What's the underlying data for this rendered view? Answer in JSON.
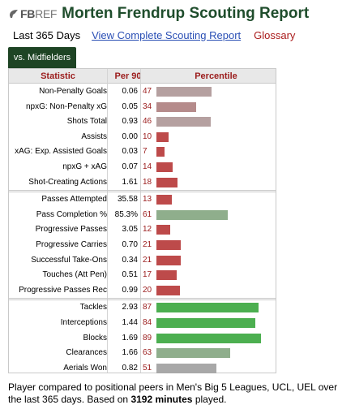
{
  "header": {
    "logo_fb": "FB",
    "logo_ref": "REF",
    "title": "Morten Frendrup Scouting Report"
  },
  "subnav": {
    "current": "Last 365 Days",
    "complete_link": "View Complete Scouting Report",
    "glossary": "Glossary"
  },
  "tab": {
    "label": "vs. Midfielders"
  },
  "table": {
    "headers": {
      "statistic": "Statistic",
      "per90": "Per 90",
      "percentile": "Percentile"
    },
    "groups": [
      [
        {
          "stat": "Non-Penalty Goals",
          "per90": "0.06",
          "pct": 47,
          "color": "#b5a0a0"
        },
        {
          "stat": "npxG: Non-Penalty xG",
          "per90": "0.05",
          "pct": 34,
          "color": "#b58b8b"
        },
        {
          "stat": "Shots Total",
          "per90": "0.93",
          "pct": 46,
          "color": "#b5a0a0"
        },
        {
          "stat": "Assists",
          "per90": "0.00",
          "pct": 10,
          "color": "#bd4a4a"
        },
        {
          "stat": "xAG: Exp. Assisted Goals",
          "per90": "0.03",
          "pct": 7,
          "color": "#bd4a4a"
        },
        {
          "stat": "npxG + xAG",
          "per90": "0.07",
          "pct": 14,
          "color": "#bd4a4a"
        },
        {
          "stat": "Shot-Creating Actions",
          "per90": "1.61",
          "pct": 18,
          "color": "#bd4a4a"
        }
      ],
      [
        {
          "stat": "Passes Attempted",
          "per90": "35.58",
          "pct": 13,
          "color": "#bd4a4a"
        },
        {
          "stat": "Pass Completion %",
          "per90": "85.3%",
          "pct": 61,
          "color": "#8fae8c"
        },
        {
          "stat": "Progressive Passes",
          "per90": "3.05",
          "pct": 12,
          "color": "#bd4a4a"
        },
        {
          "stat": "Progressive Carries",
          "per90": "0.70",
          "pct": 21,
          "color": "#bd4a4a"
        },
        {
          "stat": "Successful Take-Ons",
          "per90": "0.34",
          "pct": 21,
          "color": "#bd4a4a"
        },
        {
          "stat": "Touches (Att Pen)",
          "per90": "0.51",
          "pct": 17,
          "color": "#bd4a4a"
        },
        {
          "stat": "Progressive Passes Rec",
          "per90": "0.99",
          "pct": 20,
          "color": "#bd4a4a"
        }
      ],
      [
        {
          "stat": "Tackles",
          "per90": "2.93",
          "pct": 87,
          "color": "#4caf50"
        },
        {
          "stat": "Interceptions",
          "per90": "1.44",
          "pct": 84,
          "color": "#4caf50"
        },
        {
          "stat": "Blocks",
          "per90": "1.69",
          "pct": 89,
          "color": "#4caf50"
        },
        {
          "stat": "Clearances",
          "per90": "1.66",
          "pct": 63,
          "color": "#8fae8c"
        },
        {
          "stat": "Aerials Won",
          "per90": "0.82",
          "pct": 51,
          "color": "#a8a8a8"
        }
      ]
    ]
  },
  "footer": {
    "text_before": "Player compared to positional peers in Men's Big 5 Leagues, UCL, UEL over the last 365 days. Based on ",
    "minutes": "3192 minutes",
    "text_after": " played."
  }
}
